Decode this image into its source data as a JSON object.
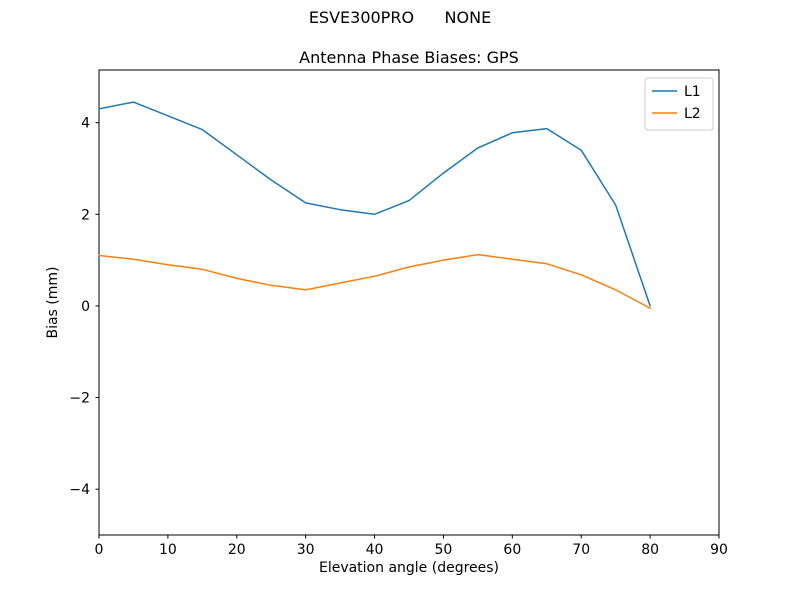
{
  "suptitle": "ESVE300PRO      NONE",
  "chart_data": {
    "type": "line",
    "title": "Antenna Phase Biases: GPS",
    "xlabel": "Elevation angle (degrees)",
    "ylabel": "Bias (mm)",
    "xlim": [
      0,
      90
    ],
    "ylim": [
      -5,
      5.15
    ],
    "xticks": [
      0,
      10,
      20,
      30,
      40,
      50,
      60,
      70,
      80,
      90
    ],
    "yticks": [
      -4,
      -2,
      0,
      2,
      4
    ],
    "grid": false,
    "legend_position": "upper right",
    "x": [
      0,
      5,
      10,
      15,
      20,
      25,
      30,
      35,
      40,
      45,
      50,
      55,
      60,
      65,
      70,
      75,
      80
    ],
    "series": [
      {
        "name": "L1",
        "color": "#1f77b4",
        "values": [
          4.3,
          4.45,
          4.15,
          3.85,
          3.3,
          2.75,
          2.25,
          2.1,
          2.0,
          2.3,
          2.9,
          3.45,
          3.78,
          3.87,
          3.4,
          2.2,
          0.0
        ]
      },
      {
        "name": "L2",
        "color": "#ff7f0e",
        "values": [
          1.1,
          1.02,
          0.9,
          0.8,
          0.6,
          0.45,
          0.35,
          0.5,
          0.65,
          0.85,
          1.0,
          1.12,
          1.02,
          0.92,
          0.68,
          0.35,
          -0.05
        ]
      }
    ]
  }
}
